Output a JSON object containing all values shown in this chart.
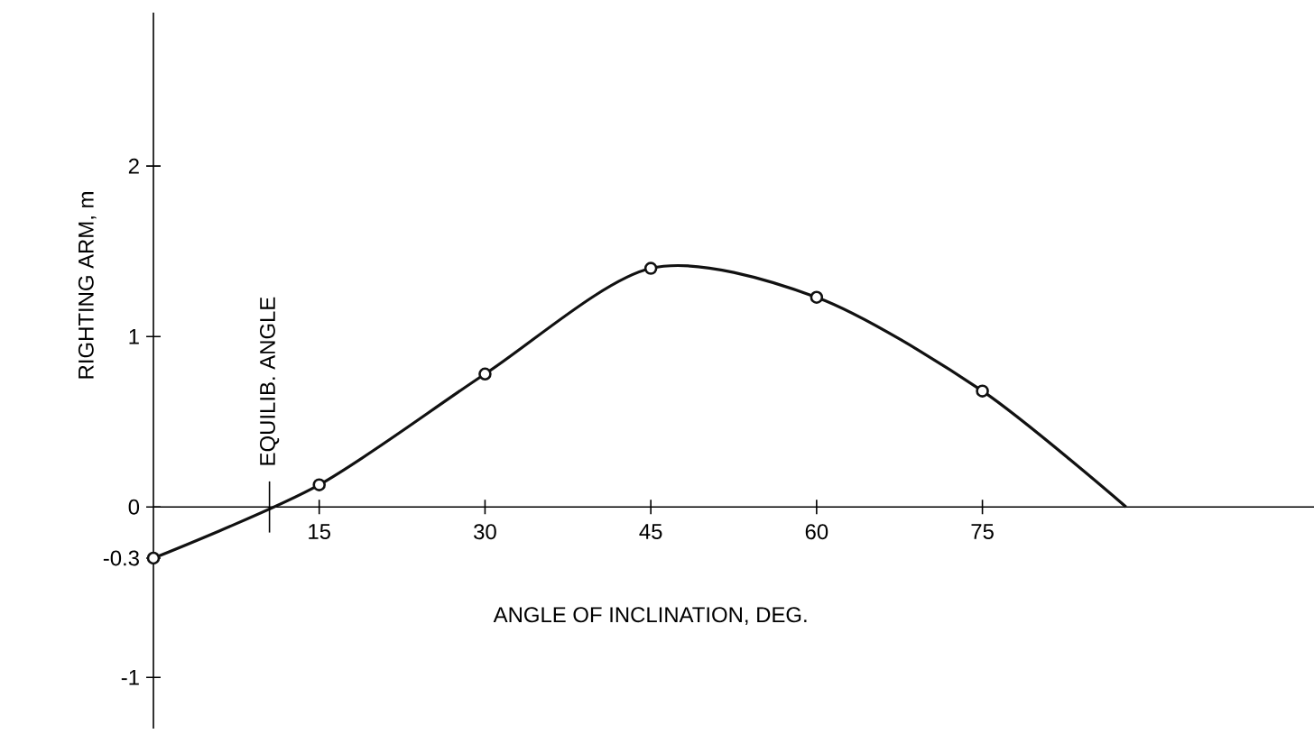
{
  "chart_data": {
    "type": "line",
    "xlabel": "ANGLE OF INCLINATION, DEG.",
    "ylabel": "RIGHTING ARM, m",
    "series": [
      {
        "color": "#111111",
        "x": [
          0,
          15,
          30,
          45,
          60,
          75,
          88
        ],
        "values": [
          -0.3,
          0.13,
          0.78,
          1.4,
          1.23,
          0.68,
          0
        ],
        "marker": "none"
      },
      {
        "type": "scatter",
        "color": "#111111",
        "x": [
          0,
          15,
          30,
          45,
          60,
          75
        ],
        "values": [
          -0.3,
          0.13,
          0.78,
          1.4,
          1.23,
          0.68
        ],
        "marker": "circle"
      }
    ],
    "xlim": [
      0,
      105
    ],
    "ylim": [
      -1.3,
      2.9
    ],
    "xticks": [
      15,
      30,
      45,
      60,
      75
    ],
    "yticks": [
      2,
      1,
      0,
      -0.3,
      -1
    ],
    "ref_lines": [
      {
        "axis": "x",
        "value": 10.5,
        "label": "EQUILIB. ANGLE"
      }
    ],
    "grid": false
  }
}
